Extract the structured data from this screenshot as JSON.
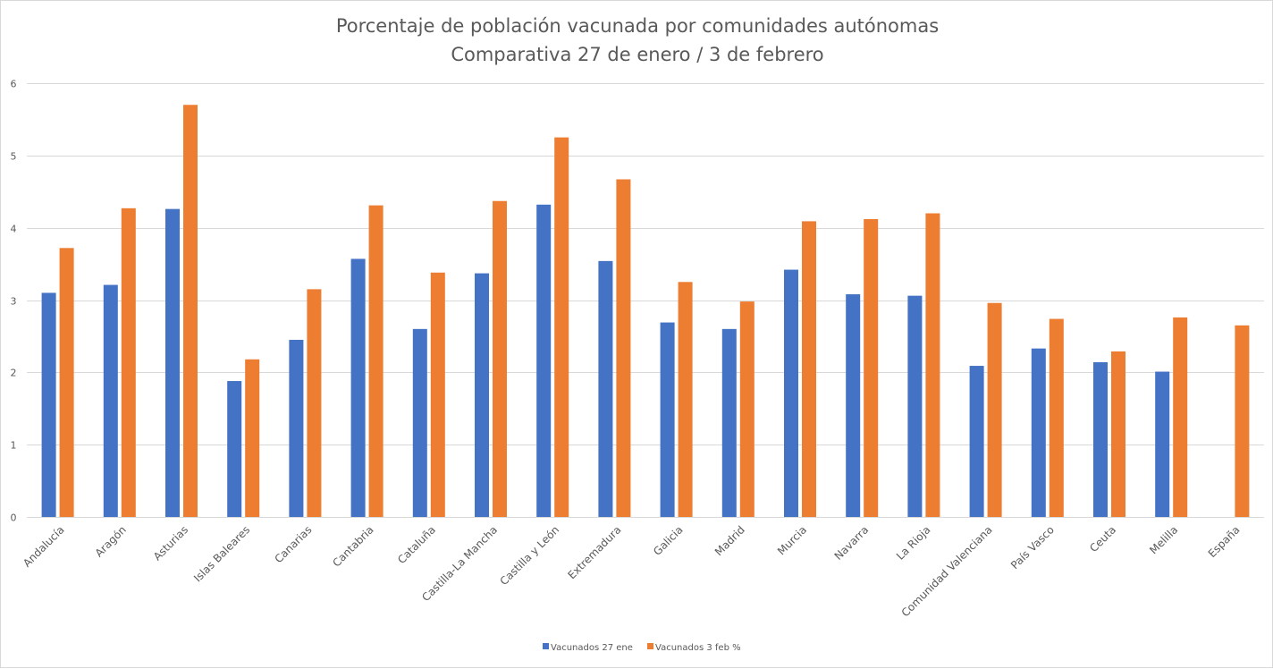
{
  "chart_data": {
    "type": "bar",
    "title": "Porcentaje de población vacunada por comunidades autónomas",
    "subtitle": "Comparativa 27 de enero / 3 de febrero",
    "xlabel": "",
    "ylabel": "",
    "ylim": [
      0,
      6
    ],
    "yticks": [
      "0",
      "1",
      "2",
      "3",
      "4",
      "5",
      "6"
    ],
    "grid": true,
    "legend_position": "bottom",
    "categories": [
      "Andalucía",
      "Aragón",
      "Asturias",
      "Islas Baleares",
      "Canarias",
      "Cantabria",
      "Cataluña",
      "Castilla-La Mancha",
      "Castilla y León",
      "Extremadura",
      "Galicia",
      "Madrid",
      "Murcia",
      "Navarra",
      "La Rioja",
      "Comunidad Valenciana",
      "País Vasco",
      "Ceuta",
      "Melilla",
      "España"
    ],
    "series": [
      {
        "name": "Vacunados 27 ene",
        "color": "#4472c4",
        "values": [
          3.1,
          3.21,
          4.26,
          1.88,
          2.45,
          3.57,
          2.6,
          3.37,
          4.32,
          3.54,
          2.69,
          2.6,
          3.42,
          3.08,
          3.06,
          2.09,
          2.33,
          2.14,
          2.01,
          null
        ]
      },
      {
        "name": "Vacunados 3 feb %",
        "color": "#ed7d31",
        "values": [
          3.72,
          4.27,
          5.7,
          2.18,
          3.15,
          4.31,
          3.38,
          4.37,
          5.25,
          4.67,
          3.25,
          2.98,
          4.09,
          4.12,
          4.2,
          2.96,
          2.74,
          2.29,
          2.76,
          2.65
        ]
      }
    ]
  }
}
